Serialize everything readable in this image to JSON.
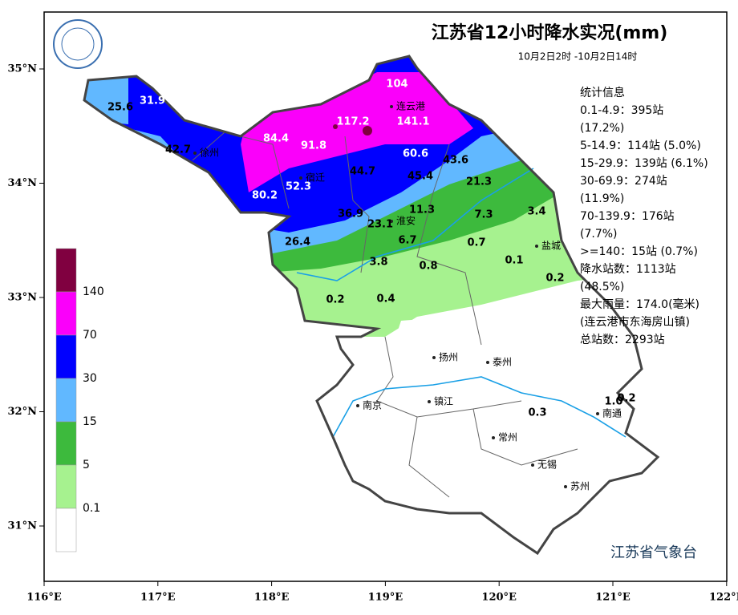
{
  "header": {
    "title": "江苏省12小时降水实况(mm)",
    "subtitle": "10月2日2时 -10月2日14时"
  },
  "stats": [
    "统计信息",
    "0.1-4.9：395站",
    "(17.2%)",
    "5-14.9：114站 (5.0%)",
    "15-29.9：139站 (6.1%)",
    "30-69.9：274站",
    "(11.9%)",
    "70-139.9：176站",
    "(7.7%)",
    ">=140：15站 (0.7%)",
    "降水站数：1113站",
    "(48.5%)",
    "最大雨量：174.0(毫米)",
    "(连云港市东海房山镇)",
    "总站数：2293站"
  ],
  "legend": {
    "labels": [
      0.1,
      5,
      15,
      30,
      70,
      140
    ],
    "colors": [
      "#ffffff",
      "#a6f28f",
      "#3dba3d",
      "#61b8ff",
      "#0000ff",
      "#fa00fa",
      "#800040"
    ]
  },
  "axes": {
    "xticks": [
      {
        "value": 116,
        "label": "116°E"
      },
      {
        "value": 117,
        "label": "117°E"
      },
      {
        "value": 118,
        "label": "118°E"
      },
      {
        "value": 119,
        "label": "119°E"
      },
      {
        "value": 120,
        "label": "120°E"
      },
      {
        "value": 121,
        "label": "121°E"
      },
      {
        "value": 122,
        "label": "122°E"
      }
    ],
    "yticks": [
      {
        "value": 31,
        "label": "31°N"
      },
      {
        "value": 32,
        "label": "32°N"
      },
      {
        "value": 33,
        "label": "33°N"
      },
      {
        "value": 34,
        "label": "34°N"
      },
      {
        "value": 35,
        "label": "35°N"
      }
    ]
  },
  "cities": [
    "徐州",
    "连云港",
    "宿迁",
    "淮安",
    "盐城",
    "扬州",
    "泰州",
    "南京",
    "镇江",
    "常州",
    "南通",
    "无锡",
    "苏州"
  ],
  "stations": [
    "25.6",
    "31.9",
    "42.7",
    "84.4",
    "91.8",
    "117.2",
    "104",
    "141.1",
    "60.6",
    "43.6",
    "44.7",
    "45.4",
    "52.3",
    "80.2",
    "21.3",
    "36.9",
    "23.1",
    "11.3",
    "7.3",
    "3.4",
    "26.4",
    "6.7",
    "0.7",
    "3.8",
    "0.8",
    "0.1",
    "0.2",
    "0.2",
    "0.4",
    "1.0",
    "0.2",
    "0.3"
  ],
  "footer": {
    "agency": "江苏省气象台"
  }
}
